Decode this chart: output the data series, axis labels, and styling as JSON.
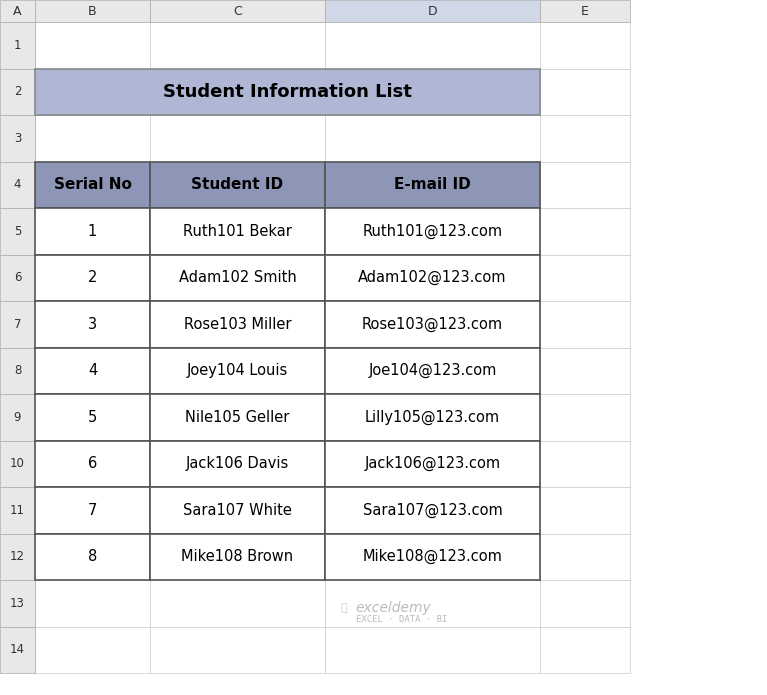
{
  "title": "Student Information List",
  "title_bg": "#b0b7d4",
  "header_bg": "#8e96b8",
  "header_text_color": "#000000",
  "cell_bg": "#ffffff",
  "grid_color": "#555555",
  "col_headers": [
    "Serial No",
    "Student ID",
    "E-mail ID"
  ],
  "rows": [
    [
      "1",
      "Ruth101 Bekar",
      "Ruth101@123.com"
    ],
    [
      "2",
      "Adam102 Smith",
      "Adam102@123.com"
    ],
    [
      "3",
      "Rose103 Miller",
      "Rose103@123.com"
    ],
    [
      "4",
      "Joey104 Louis",
      "Joe104@123.com"
    ],
    [
      "5",
      "Nile105 Geller",
      "Lilly105@123.com"
    ],
    [
      "6",
      "Jack106 Davis",
      "Jack106@123.com"
    ],
    [
      "7",
      "Sara107 White",
      "Sara107@123.com"
    ],
    [
      "8",
      "Mike108 Brown",
      "Mike108@123.com"
    ]
  ],
  "excel_col_headers": [
    "A",
    "B",
    "C",
    "D",
    "E"
  ],
  "excel_row_headers": [
    "1",
    "2",
    "3",
    "4",
    "5",
    "6",
    "7",
    "8",
    "9",
    "10",
    "11",
    "12",
    "13",
    "14"
  ],
  "excel_header_bg": "#e8e8e8",
  "excel_selected_col": "D",
  "excel_selected_col_bg": "#d0d8e8",
  "watermark_text": "exceldemy",
  "watermark_sub": "EXCEL · DATA · BI",
  "bg_color": "#ffffff"
}
